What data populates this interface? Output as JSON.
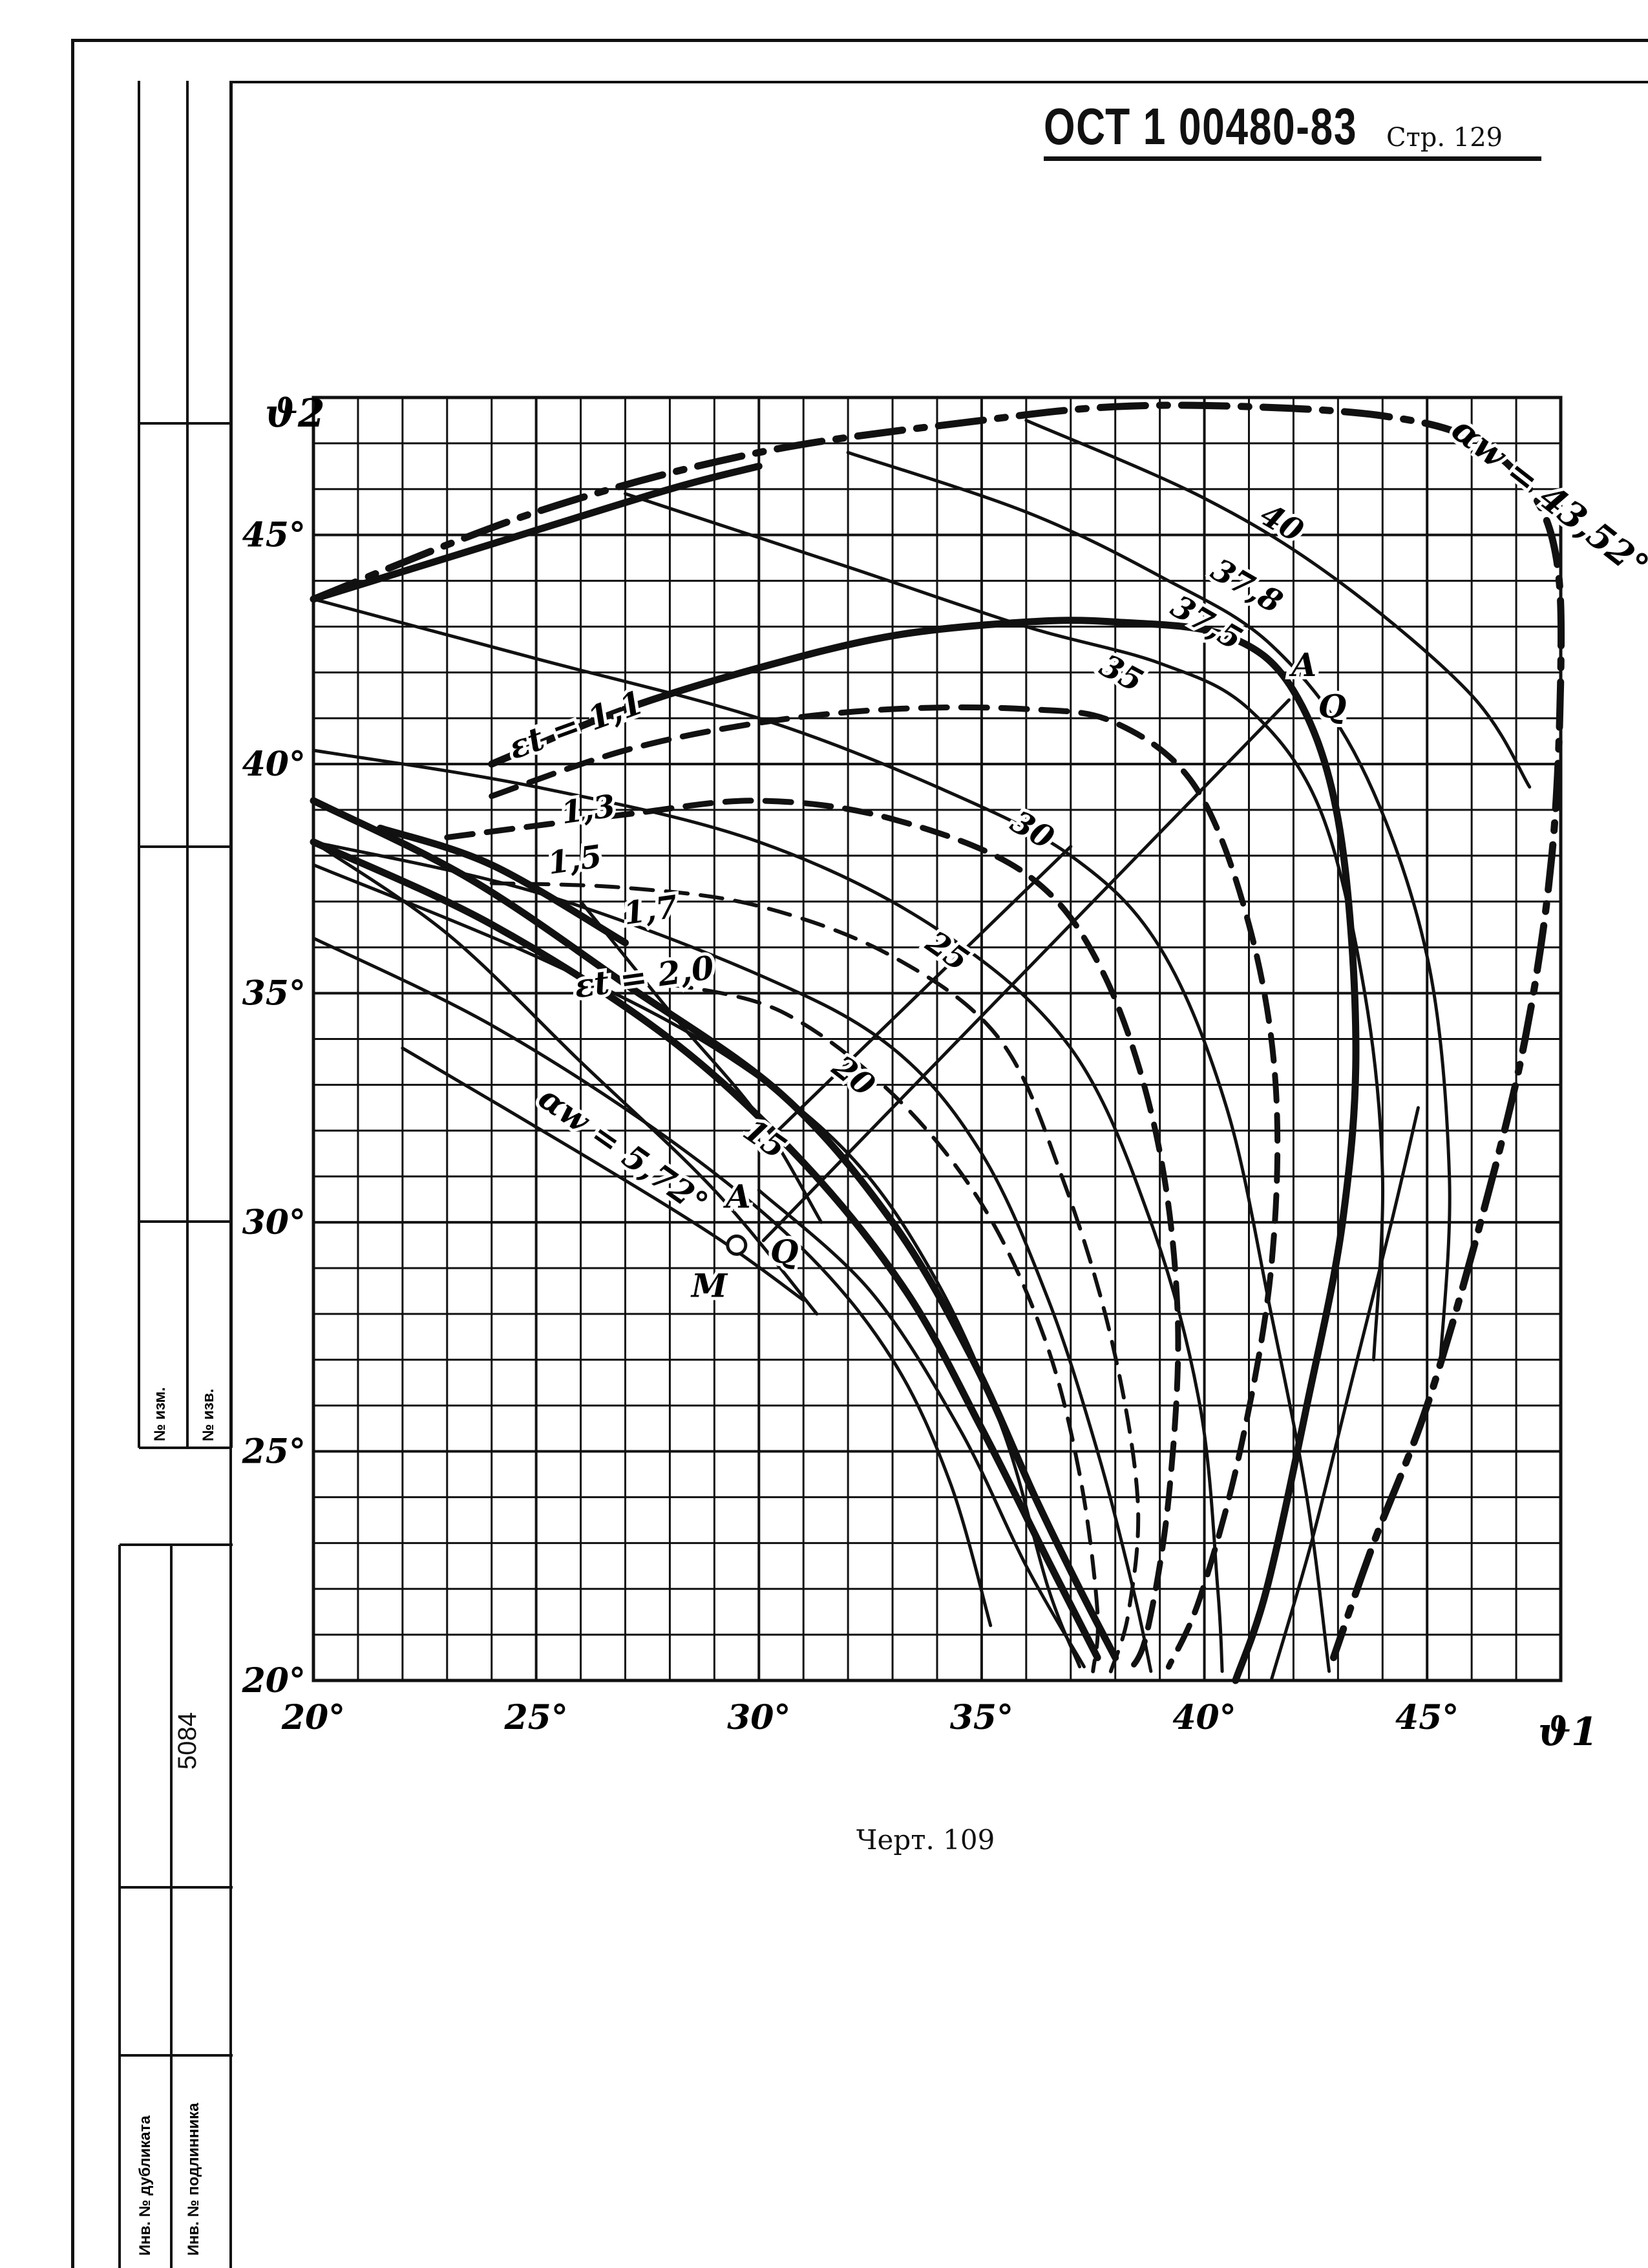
{
  "header": {
    "doc_code": "ОСТ 1 00480-83",
    "page_label": "Стр. 129"
  },
  "caption": "Черт. 109",
  "stamp": {
    "upper_labels": [
      "№ изм.",
      "№ изв."
    ],
    "lower_labels": [
      "Инв. № дубликата",
      "Инв. № подлинника"
    ],
    "inventory_number": "5084"
  },
  "chart_data": {
    "type": "line",
    "xlabel": "ϑ1",
    "ylabel": "ϑ2",
    "xlim": [
      20,
      48
    ],
    "ylim": [
      20,
      48
    ],
    "x_ticks": [
      "20°",
      "25°",
      "30°",
      "35°",
      "40°",
      "45°"
    ],
    "y_ticks": [
      "20°",
      "25°",
      "30°",
      "35°",
      "40°",
      "45°"
    ],
    "grid": true,
    "grid_step": 1,
    "curves": [
      {
        "label": "αw = 43,52°",
        "style": "dashdot-heavy",
        "points": [
          [
            20,
            43.6
          ],
          [
            25,
            45.5
          ],
          [
            30,
            46.8
          ],
          [
            35,
            47.5
          ],
          [
            38,
            47.8
          ],
          [
            41,
            47.8
          ],
          [
            44,
            47.6
          ],
          [
            46,
            47.1
          ],
          [
            47.3,
            46
          ],
          [
            47.9,
            44.5
          ],
          [
            48,
            42
          ],
          [
            47.8,
            38
          ],
          [
            47.2,
            34
          ],
          [
            46.2,
            30
          ],
          [
            45,
            26
          ],
          [
            43.8,
            23
          ],
          [
            42.9,
            20.5
          ]
        ]
      },
      {
        "label": "",
        "style": "solid-heavy",
        "points": [
          [
            20,
            43.6
          ],
          [
            24,
            44.8
          ],
          [
            28,
            46
          ],
          [
            30,
            46.5
          ]
        ]
      },
      {
        "label": "40",
        "style": "solid",
        "points": [
          [
            36,
            47.5
          ],
          [
            40,
            45.8
          ],
          [
            43,
            44
          ],
          [
            46,
            41.5
          ],
          [
            47.3,
            39.5
          ]
        ]
      },
      {
        "label": "37,8",
        "style": "solid",
        "points": [
          [
            32,
            46.8
          ],
          [
            36,
            45.5
          ],
          [
            39,
            44.1
          ],
          [
            41.5,
            42.6
          ],
          [
            43.5,
            40
          ],
          [
            45,
            35.8
          ],
          [
            45.5,
            31
          ],
          [
            45.3,
            27
          ]
        ]
      },
      {
        "label": "37,5",
        "style": "solid",
        "points": [
          [
            27,
            45.9
          ],
          [
            32,
            44.3
          ],
          [
            36,
            43
          ],
          [
            39,
            42.2
          ],
          [
            41,
            41.2
          ],
          [
            42.6,
            39
          ],
          [
            43.6,
            35
          ],
          [
            44,
            31
          ],
          [
            43.8,
            27
          ]
        ]
      },
      {
        "label": "35",
        "style": "solid",
        "points": [
          [
            20,
            43.6
          ],
          [
            25,
            42.3
          ],
          [
            30,
            41
          ],
          [
            34,
            39.5
          ],
          [
            37,
            38
          ],
          [
            39,
            36
          ],
          [
            40.5,
            32.5
          ],
          [
            41.5,
            28
          ],
          [
            42.3,
            24
          ],
          [
            42.8,
            20.2
          ]
        ]
      },
      {
        "label": "30",
        "style": "solid",
        "points": [
          [
            20,
            40.3
          ],
          [
            25,
            39.5
          ],
          [
            30,
            38.3
          ],
          [
            34,
            36.4
          ],
          [
            37,
            33.8
          ],
          [
            38.8,
            30
          ],
          [
            39.9,
            26
          ],
          [
            40.3,
            22
          ],
          [
            40.4,
            20.2
          ]
        ]
      },
      {
        "label": "25",
        "style": "solid",
        "points": [
          [
            20,
            38.3
          ],
          [
            25,
            37.2
          ],
          [
            30,
            35.4
          ],
          [
            33,
            33.8
          ],
          [
            35,
            31.5
          ],
          [
            36.5,
            28.3
          ],
          [
            37.6,
            25
          ],
          [
            38.4,
            22
          ],
          [
            38.8,
            20.2
          ]
        ]
      },
      {
        "label": "20",
        "style": "solid",
        "points": [
          [
            20,
            37.8
          ],
          [
            25,
            35.8
          ],
          [
            29,
            33.8
          ],
          [
            32,
            31.5
          ],
          [
            34,
            28.7
          ],
          [
            35.5,
            25.4
          ],
          [
            36.5,
            22
          ],
          [
            37.2,
            20.3
          ]
        ]
      },
      {
        "label": "15",
        "style": "solid",
        "points": [
          [
            20,
            36.2
          ],
          [
            24,
            34.3
          ],
          [
            28,
            31.8
          ],
          [
            31,
            29.4
          ],
          [
            33,
            27
          ],
          [
            34.3,
            24.3
          ],
          [
            35.2,
            21.2
          ]
        ]
      },
      {
        "label": "αw = 5,72°",
        "style": "solid",
        "points": [
          [
            22,
            33.8
          ],
          [
            26,
            31.5
          ],
          [
            29,
            29.7
          ],
          [
            31,
            28.3
          ]
        ]
      },
      {
        "label": "εt = 1,1",
        "style": "solid-heavy",
        "points": [
          [
            24,
            40
          ],
          [
            27,
            41.2
          ],
          [
            30,
            42.1
          ],
          [
            33,
            42.8
          ],
          [
            36,
            43.1
          ],
          [
            38,
            43.1
          ],
          [
            40.5,
            42.8
          ],
          [
            42,
            41.6
          ],
          [
            43,
            38.8
          ],
          [
            43.4,
            34
          ],
          [
            43.1,
            30
          ],
          [
            42.3,
            26
          ],
          [
            41.4,
            22
          ],
          [
            40.7,
            20
          ]
        ]
      },
      {
        "label": "1,3",
        "style": "dashed-heavy",
        "points": [
          [
            24,
            39.3
          ],
          [
            27,
            40.3
          ],
          [
            30,
            40.9
          ],
          [
            33,
            41.2
          ],
          [
            36,
            41.2
          ],
          [
            38,
            40.9
          ],
          [
            39.8,
            39.5
          ],
          [
            41,
            36.5
          ],
          [
            41.6,
            33
          ],
          [
            41.5,
            29
          ],
          [
            40.8,
            25
          ],
          [
            39.9,
            21.8
          ],
          [
            39.2,
            20.3
          ]
        ]
      },
      {
        "label": "1,5",
        "style": "dashed-heavy",
        "points": [
          [
            23,
            38.4
          ],
          [
            27,
            38.9
          ],
          [
            30,
            39.2
          ],
          [
            33,
            38.8
          ],
          [
            36,
            37.6
          ],
          [
            37.7,
            35.5
          ],
          [
            38.9,
            32
          ],
          [
            39.4,
            28
          ],
          [
            39.2,
            24
          ],
          [
            38.7,
            21
          ],
          [
            38.3,
            20.2
          ]
        ]
      },
      {
        "label": "1,7",
        "style": "dashed",
        "points": [
          [
            24,
            37.4
          ],
          [
            27,
            37.3
          ],
          [
            30,
            36.9
          ],
          [
            33,
            35.8
          ],
          [
            35.4,
            34
          ],
          [
            36.8,
            31
          ],
          [
            37.9,
            27.5
          ],
          [
            38.5,
            24
          ],
          [
            38.3,
            21.5
          ],
          [
            37.9,
            20.2
          ]
        ]
      },
      {
        "label": "εt = 2,0",
        "style": "dashed",
        "points": [
          [
            28,
            35.2
          ],
          [
            30.5,
            34.6
          ],
          [
            33,
            32.8
          ],
          [
            35,
            30.4
          ],
          [
            36.4,
            27.5
          ],
          [
            37.2,
            24.5
          ],
          [
            37.6,
            21.5
          ],
          [
            37.5,
            20.2
          ]
        ]
      },
      {
        "label": "",
        "style": "solid-heavy",
        "points": [
          [
            20,
            39.2
          ],
          [
            23.5,
            37.5
          ],
          [
            27,
            35.2
          ],
          [
            30.5,
            32.8
          ],
          [
            33,
            30
          ],
          [
            34.8,
            27
          ],
          [
            36.2,
            24
          ],
          [
            37.2,
            22
          ],
          [
            38,
            20.5
          ]
        ]
      },
      {
        "label": "",
        "style": "solid-heavy",
        "points": [
          [
            20,
            38.3
          ],
          [
            24,
            36.5
          ],
          [
            28,
            34
          ],
          [
            31,
            31.3
          ],
          [
            33.3,
            28.5
          ],
          [
            35,
            25.5
          ],
          [
            36.5,
            22.6
          ],
          [
            37.6,
            20.5
          ]
        ]
      },
      {
        "label": "",
        "style": "solid",
        "points": [
          [
            30,
            30.7
          ],
          [
            32.5,
            28.5
          ],
          [
            34.5,
            25.5
          ],
          [
            36,
            22.5
          ],
          [
            37.3,
            20.3
          ]
        ]
      },
      {
        "label": "",
        "style": "solid-heavy",
        "points": [
          [
            21.5,
            38.6
          ],
          [
            24,
            37.8
          ],
          [
            27,
            36.1
          ]
        ]
      },
      {
        "label": "",
        "style": "solid",
        "points": [
          [
            26,
            37
          ],
          [
            28,
            34.6
          ],
          [
            30,
            32.3
          ],
          [
            31.4,
            30
          ]
        ]
      },
      {
        "label": "",
        "style": "solid",
        "points": [
          [
            41.5,
            20
          ],
          [
            42.4,
            23
          ],
          [
            43.3,
            26.5
          ],
          [
            44.2,
            30
          ],
          [
            44.8,
            32.5
          ]
        ]
      },
      {
        "label": "",
        "style": "solid",
        "points": [
          [
            20,
            38.3
          ],
          [
            23,
            36.3
          ],
          [
            26,
            33.5
          ],
          [
            29,
            30.7
          ],
          [
            31.3,
            28
          ]
        ]
      },
      {
        "label": "",
        "style": "solid",
        "points": [
          [
            41.9,
            41.4
          ],
          [
            30.1,
            29.6
          ]
        ]
      },
      {
        "label": "",
        "style": "solid",
        "points": [
          [
            30,
            31.6
          ],
          [
            37,
            38.2
          ]
        ]
      }
    ],
    "points": [
      {
        "label": "A",
        "x": 42.1,
        "y": 42.2
      },
      {
        "label": "Q",
        "x": 42.7,
        "y": 41.3
      },
      {
        "label": "A",
        "x": 29.4,
        "y": 30.6
      },
      {
        "label": "Q",
        "x": 30.4,
        "y": 29.4
      },
      {
        "label": "M",
        "x": 29.5,
        "y": 29.5,
        "marker": "circle"
      }
    ]
  }
}
